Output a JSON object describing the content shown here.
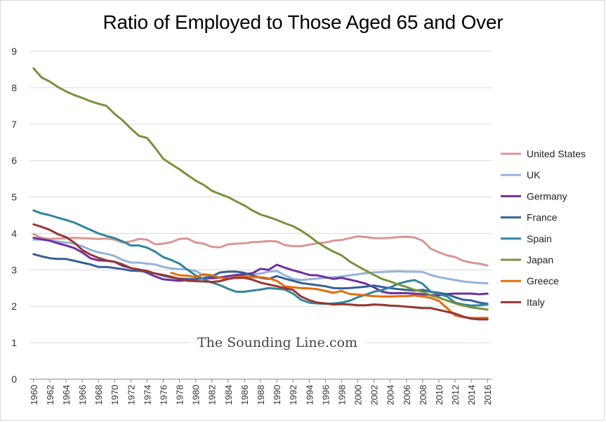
{
  "chart_data": {
    "type": "line",
    "title": "Ratio of Employed to Those Aged 65 and Over",
    "watermark": "The Sounding Line.com",
    "ylim": [
      0,
      9
    ],
    "yticks": [
      0,
      1,
      2,
      3,
      4,
      5,
      6,
      7,
      8,
      9
    ],
    "xlim": [
      1960,
      2016
    ],
    "xticks": [
      1960,
      1962,
      1964,
      1966,
      1968,
      1970,
      1972,
      1974,
      1976,
      1978,
      1980,
      1982,
      1984,
      1986,
      1988,
      1990,
      1992,
      1994,
      1996,
      1998,
      2000,
      2002,
      2004,
      2006,
      2008,
      2010,
      2012,
      2014,
      2016
    ],
    "grid": "horizontal",
    "legend": "right",
    "series": [
      {
        "name": "United States",
        "color": "#d99694",
        "x_start": 1960,
        "values": [
          3.98,
          3.88,
          3.85,
          3.86,
          3.87,
          3.88,
          3.87,
          3.86,
          3.85,
          3.86,
          3.83,
          3.75,
          3.78,
          3.85,
          3.83,
          3.7,
          3.72,
          3.76,
          3.85,
          3.86,
          3.75,
          3.72,
          3.63,
          3.62,
          3.7,
          3.72,
          3.73,
          3.76,
          3.77,
          3.79,
          3.78,
          3.68,
          3.65,
          3.65,
          3.69,
          3.73,
          3.75,
          3.8,
          3.82,
          3.87,
          3.92,
          3.9,
          3.87,
          3.87,
          3.88,
          3.9,
          3.91,
          3.89,
          3.8,
          3.58,
          3.48,
          3.4,
          3.35,
          3.25,
          3.2,
          3.17,
          3.12
        ]
      },
      {
        "name": "UK",
        "color": "#95b3d7",
        "x_start": 1960,
        "values": [
          3.83,
          3.83,
          3.8,
          3.78,
          3.75,
          3.72,
          3.65,
          3.55,
          3.48,
          3.44,
          3.38,
          3.27,
          3.2,
          3.2,
          3.17,
          3.15,
          3.08,
          3.04,
          3.02,
          3.01,
          2.97,
          2.85,
          2.8,
          2.8,
          2.82,
          2.85,
          2.87,
          2.88,
          2.9,
          2.95,
          2.97,
          2.85,
          2.75,
          2.72,
          2.74,
          2.76,
          2.78,
          2.8,
          2.82,
          2.85,
          2.88,
          2.91,
          2.93,
          2.94,
          2.95,
          2.96,
          2.95,
          2.95,
          2.94,
          2.86,
          2.8,
          2.76,
          2.72,
          2.68,
          2.66,
          2.64,
          2.63
        ]
      },
      {
        "name": "Germany",
        "color": "#7030a0",
        "x_start": 1960,
        "values": [
          3.88,
          3.84,
          3.8,
          3.73,
          3.67,
          3.6,
          3.48,
          3.32,
          3.26,
          3.25,
          3.22,
          3.11,
          3.05,
          3.0,
          2.92,
          2.82,
          2.74,
          2.72,
          2.7,
          2.72,
          2.75,
          2.77,
          2.77,
          2.79,
          2.83,
          2.86,
          2.88,
          2.91,
          3.03,
          3.0,
          3.14,
          3.06,
          2.99,
          2.93,
          2.86,
          2.85,
          2.8,
          2.75,
          2.78,
          2.73,
          2.68,
          2.62,
          2.52,
          2.4,
          2.36,
          2.36,
          2.36,
          2.35,
          2.33,
          2.31,
          2.3,
          2.34,
          2.35,
          2.35,
          2.35,
          2.33,
          2.35
        ]
      },
      {
        "name": "France",
        "color": "#376092",
        "x_start": 1960,
        "values": [
          3.43,
          3.37,
          3.32,
          3.3,
          3.3,
          3.25,
          3.2,
          3.15,
          3.08,
          3.08,
          3.05,
          3.02,
          2.98,
          2.97,
          2.95,
          2.9,
          2.84,
          2.79,
          2.76,
          2.75,
          2.74,
          2.77,
          2.82,
          2.93,
          2.95,
          2.95,
          2.92,
          2.85,
          2.78,
          2.75,
          2.83,
          2.76,
          2.7,
          2.64,
          2.61,
          2.58,
          2.55,
          2.5,
          2.49,
          2.5,
          2.52,
          2.54,
          2.57,
          2.53,
          2.5,
          2.47,
          2.45,
          2.43,
          2.45,
          2.4,
          2.37,
          2.33,
          2.25,
          2.18,
          2.16,
          2.1,
          2.07
        ]
      },
      {
        "name": "Spain",
        "color": "#31859c",
        "x_start": 1960,
        "values": [
          4.63,
          4.55,
          4.5,
          4.43,
          4.37,
          4.3,
          4.2,
          4.1,
          4.0,
          3.93,
          3.87,
          3.78,
          3.67,
          3.67,
          3.61,
          3.5,
          3.35,
          3.27,
          3.17,
          3.0,
          2.85,
          2.74,
          2.65,
          2.58,
          2.48,
          2.4,
          2.4,
          2.43,
          2.46,
          2.5,
          2.48,
          2.46,
          2.35,
          2.18,
          2.1,
          2.08,
          2.07,
          2.08,
          2.1,
          2.15,
          2.25,
          2.32,
          2.4,
          2.45,
          2.52,
          2.62,
          2.68,
          2.72,
          2.62,
          2.4,
          2.34,
          2.27,
          2.1,
          2.05,
          2.02,
          2.03,
          2.05
        ]
      },
      {
        "name": "Japan",
        "color": "#77933c",
        "x_start": 1960,
        "values": [
          8.53,
          8.28,
          8.17,
          8.02,
          7.9,
          7.8,
          7.72,
          7.63,
          7.56,
          7.5,
          7.28,
          7.1,
          6.88,
          6.68,
          6.62,
          6.35,
          6.05,
          5.9,
          5.76,
          5.6,
          5.45,
          5.33,
          5.17,
          5.08,
          5.0,
          4.88,
          4.77,
          4.63,
          4.52,
          4.45,
          4.37,
          4.28,
          4.2,
          4.08,
          3.93,
          3.76,
          3.62,
          3.5,
          3.4,
          3.23,
          3.1,
          2.98,
          2.86,
          2.75,
          2.68,
          2.6,
          2.53,
          2.45,
          2.4,
          2.3,
          2.24,
          2.16,
          2.08,
          2.02,
          1.97,
          1.94,
          1.91
        ]
      },
      {
        "name": "Greece",
        "color": "#e46c0a",
        "x_start": 1977,
        "values": [
          2.92,
          2.85,
          2.84,
          2.8,
          2.88,
          2.85,
          2.78,
          2.76,
          2.8,
          2.82,
          2.8,
          2.8,
          2.77,
          2.7,
          2.55,
          2.52,
          2.5,
          2.49,
          2.47,
          2.42,
          2.37,
          2.42,
          2.34,
          2.32,
          2.3,
          2.28,
          2.27,
          2.27,
          2.28,
          2.28,
          2.3,
          2.27,
          2.23,
          2.15,
          1.95,
          1.75,
          1.7,
          1.68,
          1.68,
          1.68
        ]
      },
      {
        "name": "Italy",
        "color": "#953735",
        "x_start": 1960,
        "values": [
          4.25,
          4.18,
          4.1,
          3.98,
          3.9,
          3.75,
          3.55,
          3.42,
          3.33,
          3.26,
          3.22,
          3.15,
          3.05,
          3.01,
          2.97,
          2.9,
          2.86,
          2.81,
          2.75,
          2.7,
          2.69,
          2.68,
          2.67,
          2.69,
          2.75,
          2.78,
          2.78,
          2.73,
          2.65,
          2.6,
          2.55,
          2.5,
          2.45,
          2.27,
          2.17,
          2.1,
          2.08,
          2.05,
          2.06,
          2.05,
          2.03,
          2.03,
          2.05,
          2.04,
          2.02,
          2.01,
          1.99,
          1.97,
          1.95,
          1.95,
          1.9,
          1.85,
          1.8,
          1.72,
          1.66,
          1.64,
          1.64
        ]
      }
    ]
  }
}
